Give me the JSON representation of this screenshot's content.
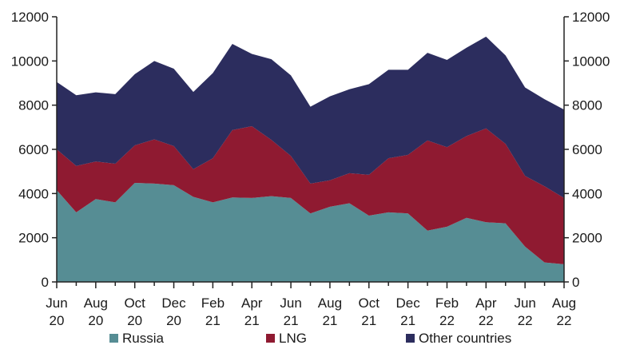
{
  "chart_data": {
    "type": "area",
    "stacked": true,
    "title": "",
    "xlabel": "",
    "ylabel": "",
    "ylim": [
      0,
      12000
    ],
    "yticks": [
      0,
      2000,
      4000,
      6000,
      8000,
      10000,
      12000
    ],
    "ytick_labels": [
      "0",
      "2000",
      "4000",
      "6000",
      "8000",
      "10000",
      "12000"
    ],
    "secondary_y_axis": true,
    "grid": false,
    "legend_position": "bottom",
    "x": [
      "Jun 20",
      "Jul 20",
      "Aug 20",
      "Sep 20",
      "Oct 20",
      "Nov 20",
      "Dec 20",
      "Jan 21",
      "Feb 21",
      "Mar 21",
      "Apr 21",
      "May 21",
      "Jun 21",
      "Jul 21",
      "Aug 21",
      "Sep 21",
      "Oct 21",
      "Nov 21",
      "Dec 21",
      "Jan 22",
      "Feb 22",
      "Mar 22",
      "Apr 22",
      "May 22",
      "Jun 22",
      "Jul 22",
      "Aug 22"
    ],
    "xtick_labels": [
      {
        "line1": "Jun",
        "line2": "20",
        "index": 0
      },
      {
        "line1": "Aug",
        "line2": "20",
        "index": 2
      },
      {
        "line1": "Oct",
        "line2": "20",
        "index": 4
      },
      {
        "line1": "Dec",
        "line2": "20",
        "index": 6
      },
      {
        "line1": "Feb",
        "line2": "21",
        "index": 8
      },
      {
        "line1": "Apr",
        "line2": "21",
        "index": 10
      },
      {
        "line1": "Jun",
        "line2": "21",
        "index": 12
      },
      {
        "line1": "Aug",
        "line2": "21",
        "index": 14
      },
      {
        "line1": "Oct",
        "line2": "21",
        "index": 16
      },
      {
        "line1": "Dec",
        "line2": "21",
        "index": 18
      },
      {
        "line1": "Feb",
        "line2": "22",
        "index": 20
      },
      {
        "line1": "Apr",
        "line2": "22",
        "index": 22
      },
      {
        "line1": "Jun",
        "line2": "22",
        "index": 24
      },
      {
        "line1": "Aug",
        "line2": "22",
        "index": 26
      }
    ],
    "series": [
      {
        "name": "Russia",
        "color": "#568d94",
        "values": [
          4150,
          3150,
          3750,
          3600,
          4480,
          4450,
          4380,
          3850,
          3600,
          3820,
          3800,
          3880,
          3800,
          3100,
          3400,
          3560,
          3000,
          3150,
          3100,
          2320,
          2500,
          2900,
          2700,
          2650,
          1600,
          880,
          800
        ]
      },
      {
        "name": "LNG",
        "color": "#8f1a31",
        "values": [
          1850,
          2100,
          1700,
          1750,
          1700,
          2000,
          1770,
          1250,
          2000,
          3050,
          3250,
          2550,
          1900,
          1350,
          1200,
          1360,
          1850,
          2450,
          2650,
          4080,
          3600,
          3700,
          4250,
          3600,
          3200,
          3450,
          3000
        ]
      },
      {
        "name": "Other countries",
        "color": "#2c2d5e",
        "values": [
          3050,
          3200,
          3130,
          3150,
          3220,
          3550,
          3500,
          3500,
          3850,
          3900,
          3270,
          3650,
          3650,
          3480,
          3800,
          3800,
          4100,
          4000,
          3850,
          3970,
          3950,
          4000,
          4150,
          4000,
          4000,
          3940,
          4000
        ]
      }
    ]
  }
}
